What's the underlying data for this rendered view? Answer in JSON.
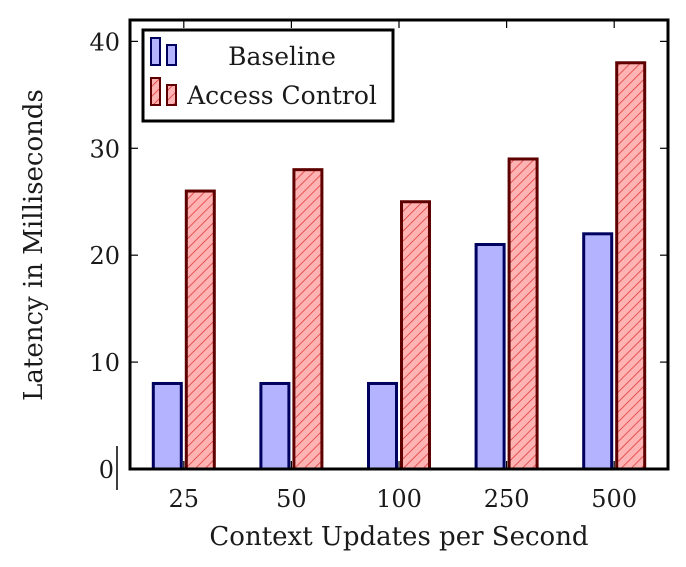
{
  "chart_data": {
    "type": "bar",
    "categories": [
      "25",
      "50",
      "100",
      "250",
      "500"
    ],
    "series": [
      {
        "name": "Baseline",
        "values": [
          8,
          8,
          8,
          21,
          22
        ],
        "fill": "#b3b3ff",
        "stroke": "#00005e",
        "pattern": "solid"
      },
      {
        "name": "Access Control",
        "values": [
          26,
          28,
          25,
          29,
          38
        ],
        "fill": "#ffb3b3",
        "stroke": "#5e0000",
        "pattern": "diagonal-hatch"
      }
    ],
    "xlabel": "Context Updates per Second",
    "ylabel": "Latency in Milliseconds",
    "ylim": [
      0,
      42
    ],
    "yticks": [
      0,
      10,
      20,
      30,
      40
    ],
    "grid": false,
    "legend_position": "top-left"
  }
}
